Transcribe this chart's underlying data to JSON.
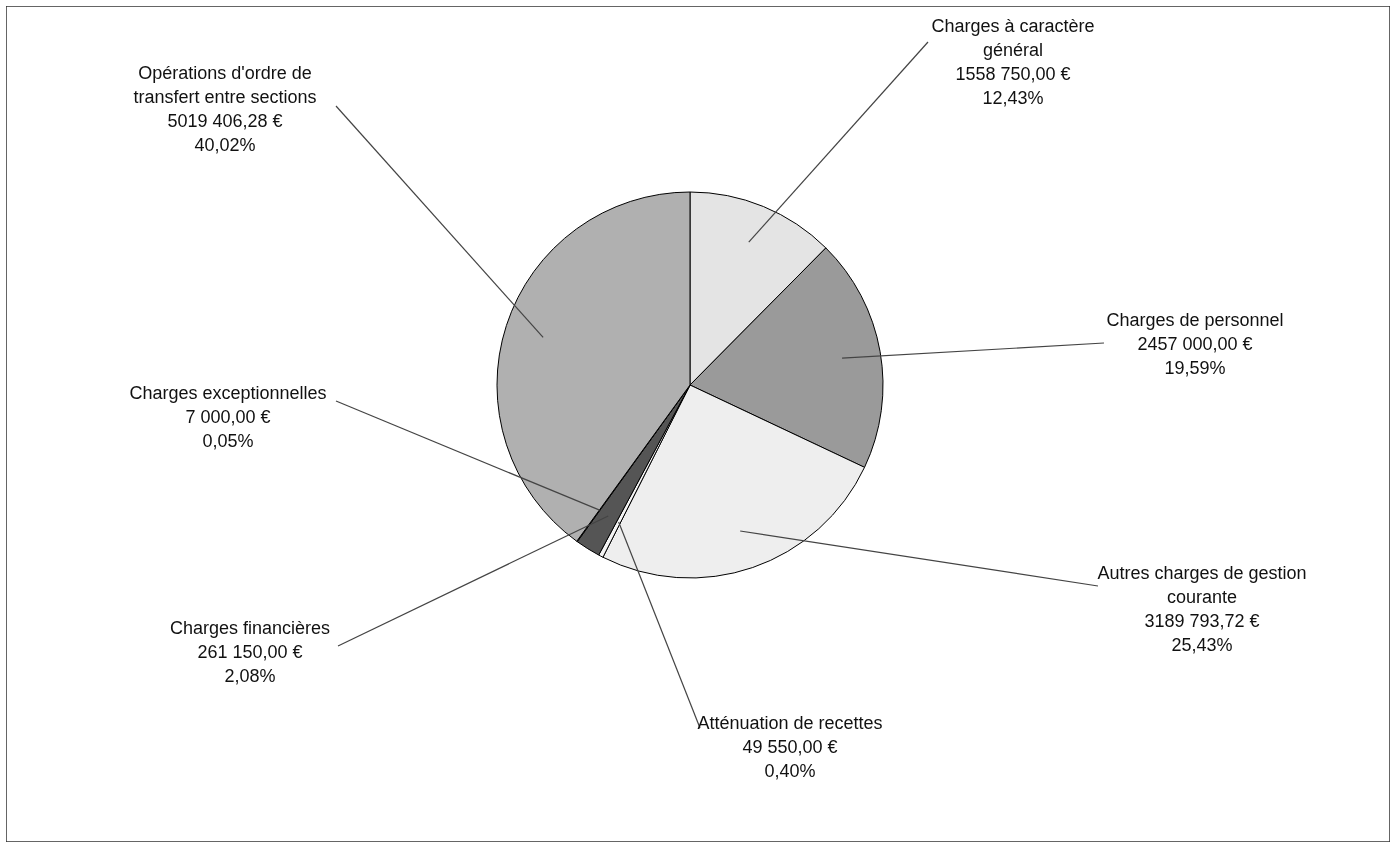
{
  "chart_data": {
    "type": "pie",
    "categories": [
      "Charges à caractère général",
      "Charges de personnel",
      "Autres charges de gestion courante",
      "Atténuation de recettes",
      "Charges financières",
      "Charges exceptionnelles",
      "Opérations d'ordre de transfert entre sections"
    ],
    "values": [
      1558750.0,
      2457000.0,
      3189793.72,
      49550.0,
      261150.0,
      7000.0,
      5019406.28
    ],
    "value_labels": [
      "1558 750,00 €\n12,43%",
      "2457 000,00 €\n19,59%",
      "3189 793,72 €\n25,43%",
      "49 550,00 €\n0,40%",
      "261 150,00 €\n2,08%",
      "7 000,00 €\n0,05%",
      "5019 406,28 €\n40,02%"
    ],
    "colors": [
      "#e4e4e4",
      "#9a9a9a",
      "#eeeeee",
      "#f4f4f4",
      "#555555",
      "#777777",
      "#b0b0b0"
    ]
  }
}
